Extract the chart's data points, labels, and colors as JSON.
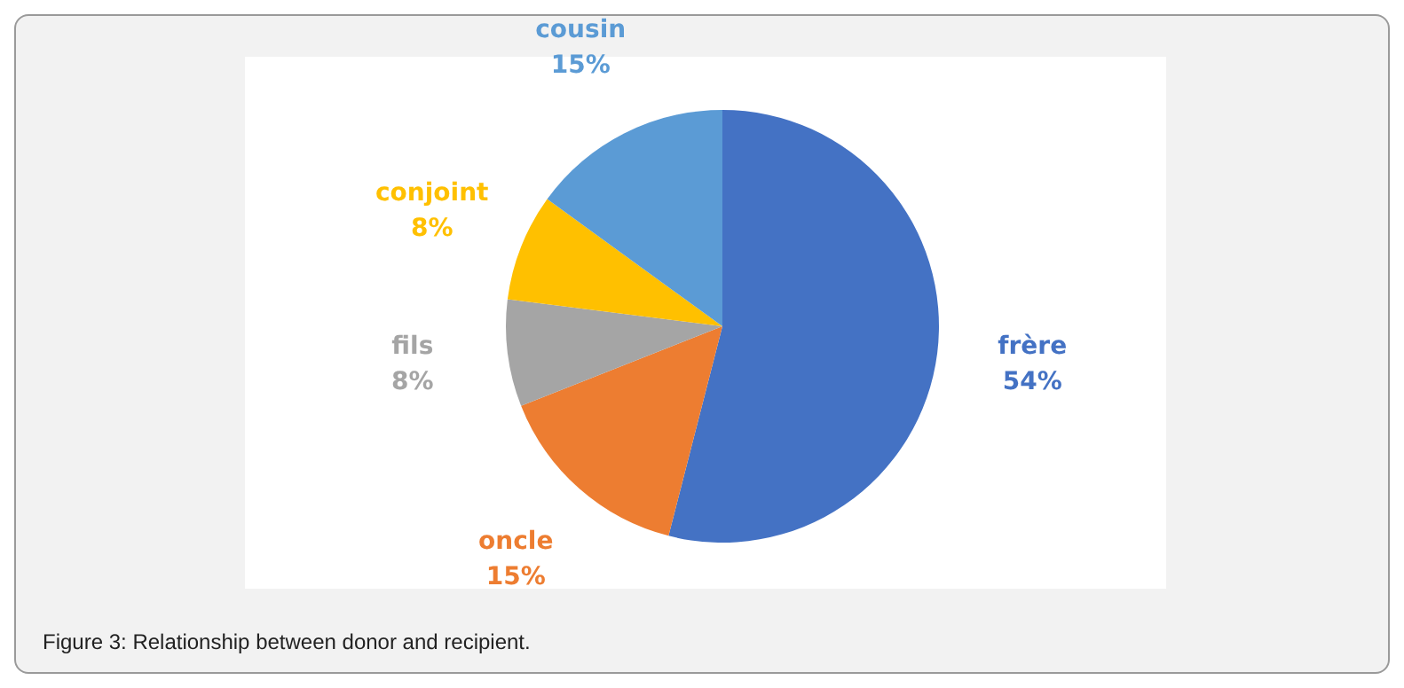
{
  "chart_data": {
    "type": "pie",
    "categories": [
      "frère",
      "oncle",
      "fils",
      "conjoint",
      "cousin"
    ],
    "values": [
      54,
      15,
      8,
      8,
      15
    ],
    "colors": [
      "#4472c4",
      "#ed7d31",
      "#a5a5a5",
      "#ffc000",
      "#5b9bd5"
    ],
    "value_labels": [
      "54%",
      "15%",
      "8%",
      "8%",
      "15%"
    ],
    "legend": false,
    "annotations": [
      "Figure 3: Relationship between donor and recipient."
    ]
  }
}
